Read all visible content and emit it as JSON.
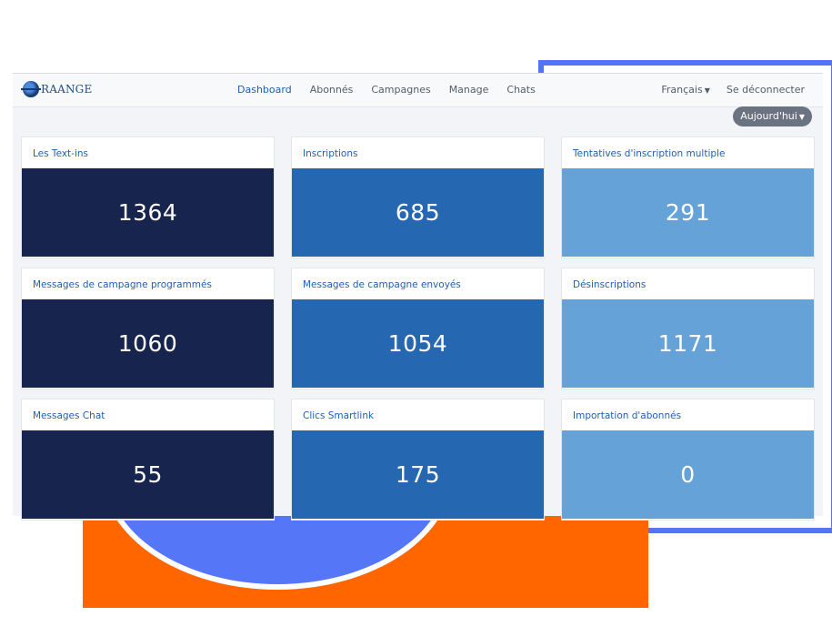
{
  "brand": {
    "name": "RAANGE"
  },
  "nav": {
    "links": [
      "Dashboard",
      "Abonnés",
      "Campagnes",
      "Manage",
      "Chats"
    ],
    "active": "Dashboard",
    "language": "Français",
    "logout": "Se déconnecter"
  },
  "filter": {
    "period": "Aujourd'hui"
  },
  "cards": [
    {
      "title": "Les Text-ins",
      "value": "1364"
    },
    {
      "title": "Inscriptions",
      "value": "685"
    },
    {
      "title": "Tentatives d'inscription multiple",
      "value": "291"
    },
    {
      "title": "Messages de campagne programmés",
      "value": "1060"
    },
    {
      "title": "Messages de campagne envoyés",
      "value": "1054"
    },
    {
      "title": "Désinscriptions",
      "value": "1171"
    },
    {
      "title": "Messages Chat",
      "value": "55"
    },
    {
      "title": "Clics Smartlink",
      "value": "175"
    },
    {
      "title": "Importation d'abonnés",
      "value": "0"
    }
  ],
  "colors": {
    "col1": "#17244d",
    "col2": "#2667b1",
    "col3": "#64a2d8",
    "accent": "#1f5fb0",
    "frame": "#5474f6",
    "orange": "#ff6600"
  }
}
